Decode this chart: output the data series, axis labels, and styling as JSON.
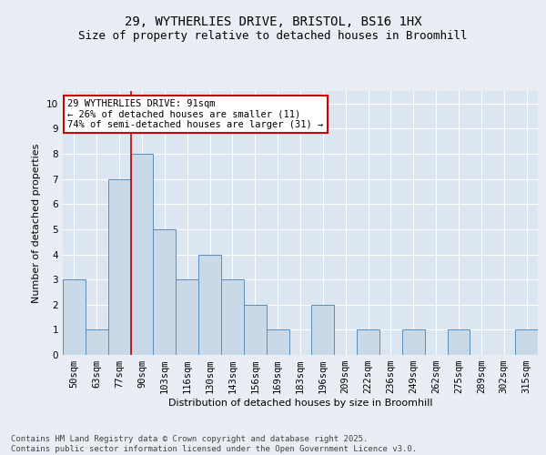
{
  "title_line1": "29, WYTHERLIES DRIVE, BRISTOL, BS16 1HX",
  "title_line2": "Size of property relative to detached houses in Broomhill",
  "xlabel": "Distribution of detached houses by size in Broomhill",
  "ylabel": "Number of detached properties",
  "categories": [
    "50sqm",
    "63sqm",
    "77sqm",
    "90sqm",
    "103sqm",
    "116sqm",
    "130sqm",
    "143sqm",
    "156sqm",
    "169sqm",
    "183sqm",
    "196sqm",
    "209sqm",
    "222sqm",
    "236sqm",
    "249sqm",
    "262sqm",
    "275sqm",
    "289sqm",
    "302sqm",
    "315sqm"
  ],
  "values": [
    3,
    1,
    7,
    8,
    5,
    3,
    4,
    3,
    2,
    1,
    0,
    2,
    0,
    1,
    0,
    1,
    0,
    1,
    0,
    0,
    1
  ],
  "bar_color": "#c9d9e8",
  "bar_edge_color": "#5b8db8",
  "subject_bar_index": 3,
  "subject_line_color": "#cc0000",
  "annotation_text": "29 WYTHERLIES DRIVE: 91sqm\n← 26% of detached houses are smaller (11)\n74% of semi-detached houses are larger (31) →",
  "annotation_box_color": "#ffffff",
  "annotation_box_edge_color": "#cc0000",
  "ylim": [
    0,
    10.5
  ],
  "yticks": [
    0,
    1,
    2,
    3,
    4,
    5,
    6,
    7,
    8,
    9,
    10
  ],
  "background_color": "#dce6f0",
  "footer_text": "Contains HM Land Registry data © Crown copyright and database right 2025.\nContains public sector information licensed under the Open Government Licence v3.0.",
  "grid_color": "#ffffff",
  "title_fontsize": 10,
  "subtitle_fontsize": 9,
  "annotation_fontsize": 7.5,
  "footer_fontsize": 6.5,
  "axis_label_fontsize": 8,
  "tick_fontsize": 7.5,
  "fig_bg_color": "#e8eef4"
}
